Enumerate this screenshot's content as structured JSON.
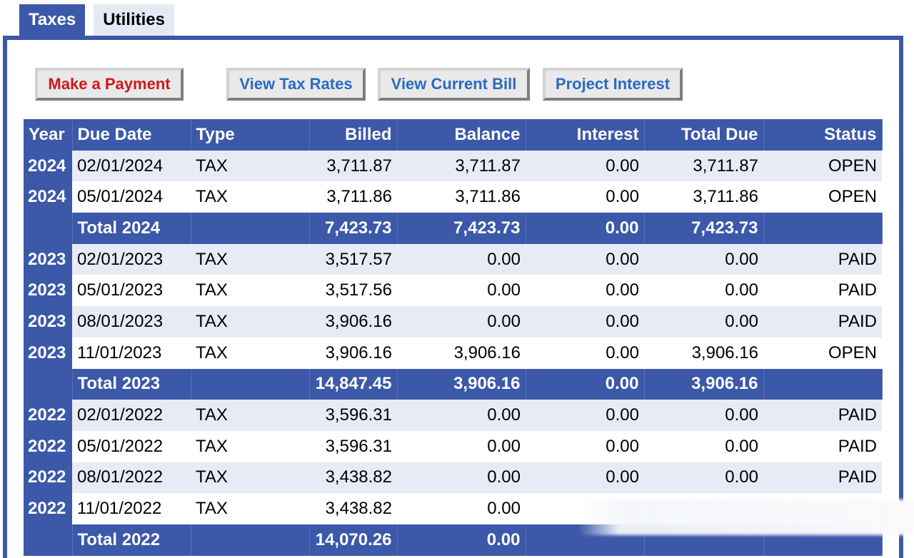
{
  "tabs": [
    {
      "label": "Taxes",
      "active": true
    },
    {
      "label": "Utilities",
      "active": false
    }
  ],
  "actions": {
    "make_payment": "Make a Payment",
    "view_tax_rates": "View Tax Rates",
    "view_current_bill": "View Current Bill",
    "project_interest": "Project Interest"
  },
  "colors": {
    "header_blue": "#3c58a8",
    "alt_row": "#e8ebf5",
    "payment_red": "#d01818",
    "link_blue": "#2a6ac2"
  },
  "table": {
    "headers": [
      "Year",
      "Due Date",
      "Type",
      "Billed",
      "Balance",
      "Interest",
      "Total Due",
      "Status"
    ],
    "rows": [
      {
        "kind": "row",
        "year": "2024",
        "due": "02/01/2024",
        "type": "TAX",
        "billed": "3,711.87",
        "balance": "3,711.87",
        "interest": "0.00",
        "total": "3,711.87",
        "status": "OPEN"
      },
      {
        "kind": "row",
        "year": "2024",
        "due": "05/01/2024",
        "type": "TAX",
        "billed": "3,711.86",
        "balance": "3,711.86",
        "interest": "0.00",
        "total": "3,711.86",
        "status": "OPEN"
      },
      {
        "kind": "total",
        "label": "Total 2024",
        "billed": "7,423.73",
        "balance": "7,423.73",
        "interest": "0.00",
        "total": "7,423.73"
      },
      {
        "kind": "row",
        "year": "2023",
        "due": "02/01/2023",
        "type": "TAX",
        "billed": "3,517.57",
        "balance": "0.00",
        "interest": "0.00",
        "total": "0.00",
        "status": "PAID"
      },
      {
        "kind": "row",
        "year": "2023",
        "due": "05/01/2023",
        "type": "TAX",
        "billed": "3,517.56",
        "balance": "0.00",
        "interest": "0.00",
        "total": "0.00",
        "status": "PAID"
      },
      {
        "kind": "row",
        "year": "2023",
        "due": "08/01/2023",
        "type": "TAX",
        "billed": "3,906.16",
        "balance": "0.00",
        "interest": "0.00",
        "total": "0.00",
        "status": "PAID"
      },
      {
        "kind": "row",
        "year": "2023",
        "due": "11/01/2023",
        "type": "TAX",
        "billed": "3,906.16",
        "balance": "3,906.16",
        "interest": "0.00",
        "total": "3,906.16",
        "status": "OPEN"
      },
      {
        "kind": "total",
        "label": "Total 2023",
        "billed": "14,847.45",
        "balance": "3,906.16",
        "interest": "0.00",
        "total": "3,906.16"
      },
      {
        "kind": "row",
        "year": "2022",
        "due": "02/01/2022",
        "type": "TAX",
        "billed": "3,596.31",
        "balance": "0.00",
        "interest": "0.00",
        "total": "0.00",
        "status": "PAID"
      },
      {
        "kind": "row",
        "year": "2022",
        "due": "05/01/2022",
        "type": "TAX",
        "billed": "3,596.31",
        "balance": "0.00",
        "interest": "0.00",
        "total": "0.00",
        "status": "PAID"
      },
      {
        "kind": "row",
        "year": "2022",
        "due": "08/01/2022",
        "type": "TAX",
        "billed": "3,438.82",
        "balance": "0.00",
        "interest": "0.00",
        "total": "0.00",
        "status": "PAID"
      },
      {
        "kind": "row",
        "year": "2022",
        "due": "11/01/2022",
        "type": "TAX",
        "billed": "3,438.82",
        "balance": "0.00",
        "interest": "",
        "total": "",
        "status": ""
      },
      {
        "kind": "total",
        "label": "Total 2022",
        "billed": "14,070.26",
        "balance": "0.00",
        "interest": "",
        "total": ""
      }
    ]
  }
}
